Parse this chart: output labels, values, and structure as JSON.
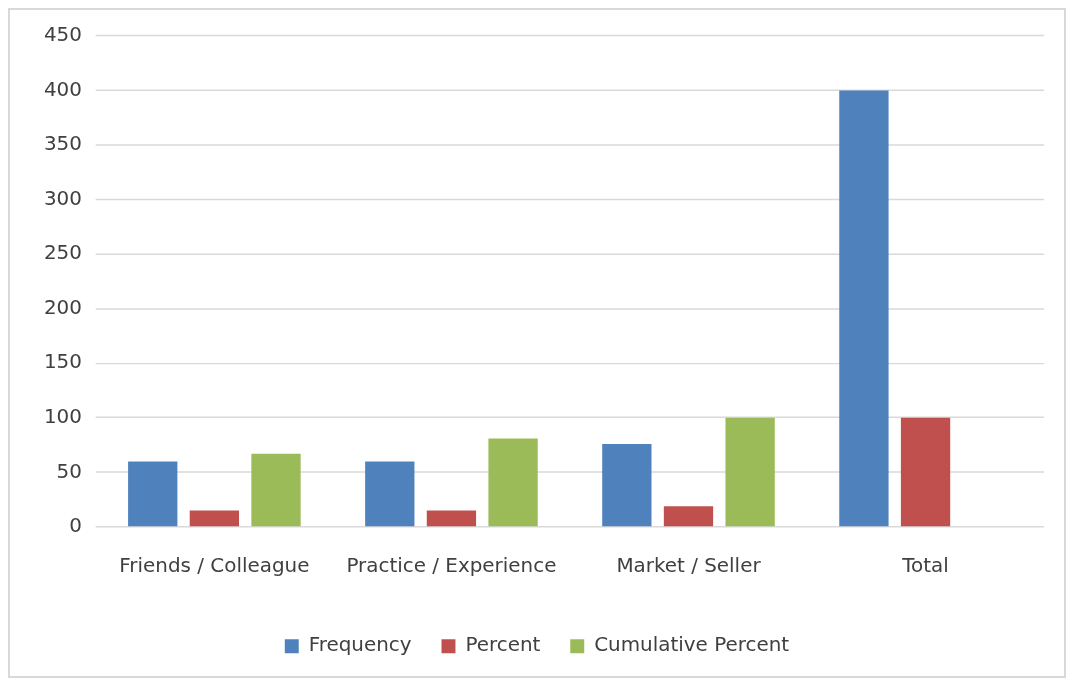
{
  "chart_data": {
    "type": "bar",
    "categories": [
      "Friends / Colleague",
      "Practice / Experience",
      "Market / Seller",
      "Total"
    ],
    "series": [
      {
        "name": "Frequency",
        "color": "#4f81bd",
        "values": [
          60,
          60,
          76,
          400
        ]
      },
      {
        "name": "Percent",
        "color": "#c0504d",
        "values": [
          15,
          15,
          19,
          100
        ]
      },
      {
        "name": "Cumulative Percent",
        "color": "#9bbb59",
        "values": [
          67,
          81,
          100,
          null
        ]
      }
    ],
    "ylim": [
      0,
      450
    ],
    "yticks": [
      0,
      50,
      100,
      150,
      200,
      250,
      300,
      350,
      400,
      450
    ],
    "grid": "y",
    "legend": "bottom"
  }
}
